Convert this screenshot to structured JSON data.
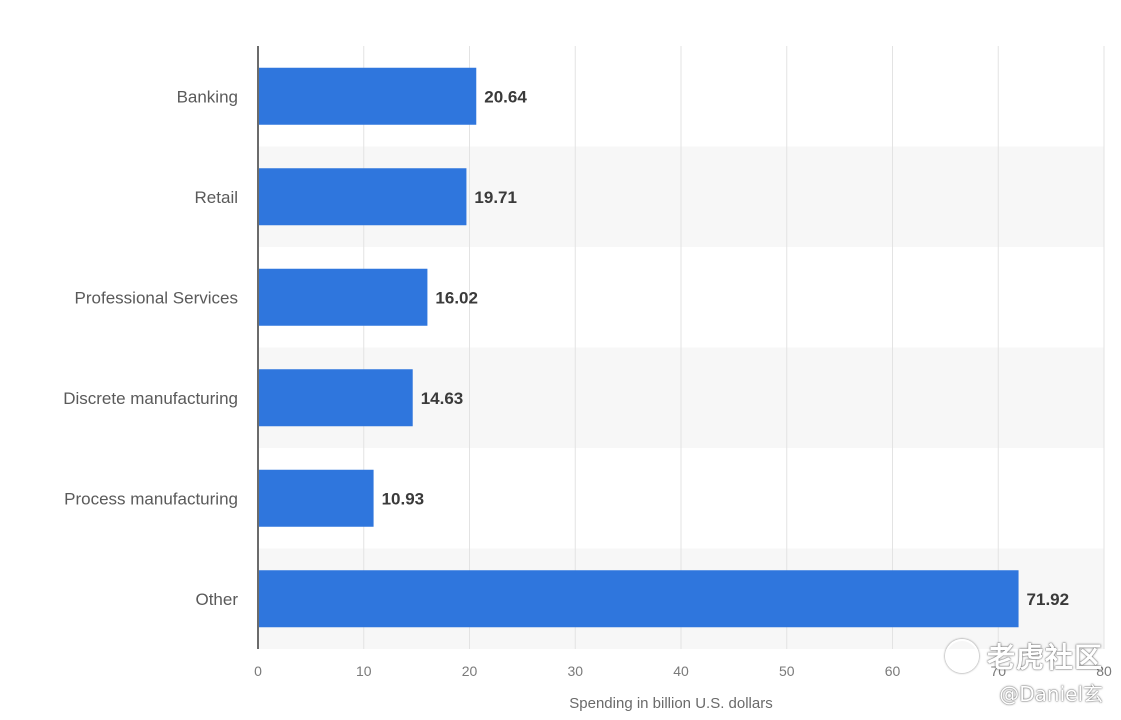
{
  "chart_data": {
    "type": "bar",
    "orientation": "horizontal",
    "categories": [
      "Banking",
      "Retail",
      "Professional Services",
      "Discrete manufacturing",
      "Process manufacturing",
      "Other"
    ],
    "values": [
      20.64,
      19.71,
      16.02,
      14.63,
      10.93,
      71.92
    ],
    "value_labels": [
      "20.64",
      "19.71",
      "16.02",
      "14.63",
      "10.93",
      "71.92"
    ],
    "xlabel": "Spending in billion U.S. dollars",
    "xlim": [
      0,
      80
    ],
    "xticks": [
      0,
      10,
      20,
      30,
      40,
      50,
      60,
      70,
      80
    ],
    "grid": "vertical",
    "bar_color": "#2f76dd",
    "alt_row_color": "#f7f7f7"
  },
  "watermark": {
    "name": "老虎社区",
    "handle": "@Daniel玄",
    "icon": "tiger-community-logo-icon"
  }
}
